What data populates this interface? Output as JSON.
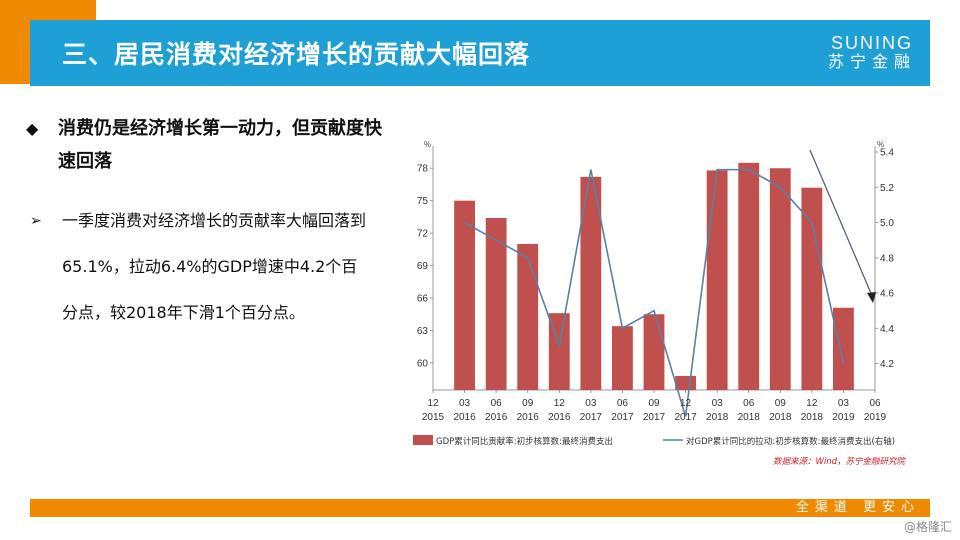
{
  "header": {
    "title": "三、居民消费对经济增长的贡献大幅回落",
    "logo_en": "SUNING",
    "logo_cn": "苏宁金融"
  },
  "content": {
    "main_bullet": "消费仍是经济增长第一动力，但贡献度快速回落",
    "sub_bullet": "一季度消费对经济增长的贡献率大幅回落到65.1%，拉动6.4%的GDP增速中4.2个百分点，较2018年下滑1个百分点。"
  },
  "footer": {
    "slogan": "全渠道  更安心",
    "watermark": "@格隆汇"
  },
  "colors": {
    "bar": "#c0504d",
    "line": "#5b7fa6",
    "title_bar": "#1e9fd6",
    "accent": "#f08a00"
  },
  "chart_data": {
    "type": "bar",
    "x_ticks": [
      {
        "month": "12",
        "year": "2015"
      },
      {
        "month": "03",
        "year": "2016"
      },
      {
        "month": "06",
        "year": "2016"
      },
      {
        "month": "09",
        "year": "2016"
      },
      {
        "month": "12",
        "year": "2016"
      },
      {
        "month": "03",
        "year": "2017"
      },
      {
        "month": "06",
        "year": "2017"
      },
      {
        "month": "09",
        "year": "2017"
      },
      {
        "month": "12",
        "year": "2017"
      },
      {
        "month": "03",
        "year": "2018"
      },
      {
        "month": "06",
        "year": "2018"
      },
      {
        "month": "09",
        "year": "2018"
      },
      {
        "month": "12",
        "year": "2018"
      },
      {
        "month": "03",
        "year": "2019"
      },
      {
        "month": "06",
        "year": "2019"
      }
    ],
    "series": [
      {
        "name": "GDP累计同比贡献率:初步核算数:最终消费支出",
        "axis": "left",
        "type": "bar",
        "values": [
          null,
          75.0,
          73.4,
          71.0,
          64.6,
          77.2,
          63.4,
          64.5,
          58.8,
          77.8,
          78.5,
          78.0,
          76.2,
          65.1,
          null
        ]
      },
      {
        "name": "对GDP累计同比的拉动:初步核算数:最终消费支出(右轴)",
        "axis": "right",
        "type": "line",
        "values": [
          null,
          5.0,
          4.9,
          4.8,
          4.3,
          5.3,
          4.4,
          4.5,
          3.9,
          5.3,
          5.3,
          5.2,
          5.0,
          4.2,
          null
        ]
      }
    ],
    "left_axis": {
      "unit": "%",
      "ylim": [
        57.5,
        79.5
      ],
      "ticks": [
        60,
        63,
        66,
        69,
        72,
        75,
        78
      ]
    },
    "right_axis": {
      "unit": "%",
      "ylim": [
        4.05,
        5.4
      ],
      "ticks": [
        "4.2",
        "4.4",
        "4.6",
        "4.8",
        "5.0",
        "5.2",
        "5.4"
      ]
    },
    "source": "数据来源：Wind，苏宁金融研究院",
    "annotation": "downward-arrow",
    "legend_position": "bottom"
  }
}
